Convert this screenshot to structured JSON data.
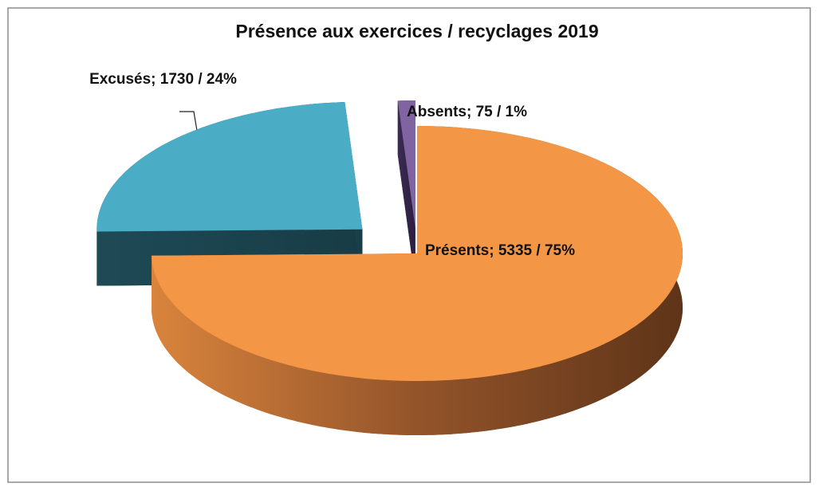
{
  "chart_data": {
    "type": "pie3d",
    "title": "Présence aux exercices / recyclages  2019",
    "values": [
      5335,
      1730,
      75
    ],
    "value_labels": [
      "Présents; 5335 / 75%",
      "Excusés; 1730 / 24%",
      "Absents; 75 / 1%"
    ],
    "colors": [
      "#f39646",
      "#4bacc6",
      "#8064a2"
    ]
  }
}
